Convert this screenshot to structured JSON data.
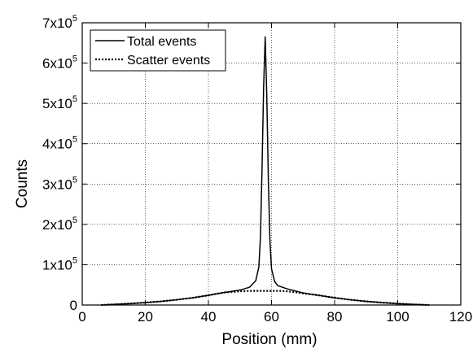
{
  "chart_data": {
    "type": "line",
    "title": "",
    "xlabel": "Position (mm)",
    "ylabel": "Counts",
    "xlim": [
      0,
      120
    ],
    "ylim": [
      0,
      700000
    ],
    "grid": true,
    "grid_style": "dotted",
    "legend_position": "top-left",
    "x_ticks": [
      {
        "value": 0,
        "label": "0"
      },
      {
        "value": 20,
        "label": "20"
      },
      {
        "value": 40,
        "label": "40"
      },
      {
        "value": 60,
        "label": "60"
      },
      {
        "value": 80,
        "label": "80"
      },
      {
        "value": 100,
        "label": "100"
      },
      {
        "value": 120,
        "label": "120"
      }
    ],
    "y_ticks": [
      {
        "value": 0,
        "mantissa": "0",
        "base": "",
        "exp": ""
      },
      {
        "value": 100000,
        "mantissa": "1x10",
        "base": "",
        "exp": "5"
      },
      {
        "value": 200000,
        "mantissa": "2x10",
        "base": "",
        "exp": "5"
      },
      {
        "value": 300000,
        "mantissa": "3x10",
        "base": "",
        "exp": "5"
      },
      {
        "value": 400000,
        "mantissa": "4x10",
        "base": "",
        "exp": "5"
      },
      {
        "value": 500000,
        "mantissa": "5x10",
        "base": "",
        "exp": "5"
      },
      {
        "value": 600000,
        "mantissa": "6x10",
        "base": "",
        "exp": "5"
      },
      {
        "value": 700000,
        "mantissa": "7x10",
        "base": "",
        "exp": "5"
      }
    ],
    "series": [
      {
        "name": "Total events",
        "style": "solid",
        "color": "#000000",
        "x": [
          6,
          10,
          15,
          20,
          25,
          30,
          35,
          40,
          42,
          45,
          50,
          53,
          55,
          56,
          56.5,
          57,
          57.5,
          58,
          58.5,
          59,
          59.5,
          60,
          61,
          62,
          65,
          70,
          75,
          80,
          85,
          90,
          95,
          100,
          105,
          110
        ],
        "y": [
          0,
          1500,
          3500,
          6000,
          9000,
          13000,
          18000,
          24000,
          27000,
          31000,
          37000,
          44000,
          60000,
          95000,
          170000,
          340000,
          540000,
          665000,
          520000,
          310000,
          160000,
          90000,
          58000,
          48000,
          40000,
          30000,
          24000,
          18000,
          13000,
          9000,
          6000,
          3500,
          1500,
          0
        ]
      },
      {
        "name": "Scatter events",
        "style": "dotted",
        "color": "#000000",
        "x": [
          6,
          10,
          15,
          20,
          25,
          30,
          35,
          40,
          42,
          45,
          50,
          53,
          55,
          58,
          61,
          63,
          65,
          70,
          75,
          80,
          85,
          90,
          95,
          100,
          105,
          110
        ],
        "y": [
          0,
          1500,
          3500,
          6000,
          9000,
          13000,
          18000,
          24000,
          27000,
          31000,
          34000,
          35000,
          35000,
          35000,
          35000,
          35000,
          34000,
          29000,
          24000,
          18000,
          13000,
          9000,
          6000,
          3500,
          1500,
          0
        ]
      }
    ]
  }
}
